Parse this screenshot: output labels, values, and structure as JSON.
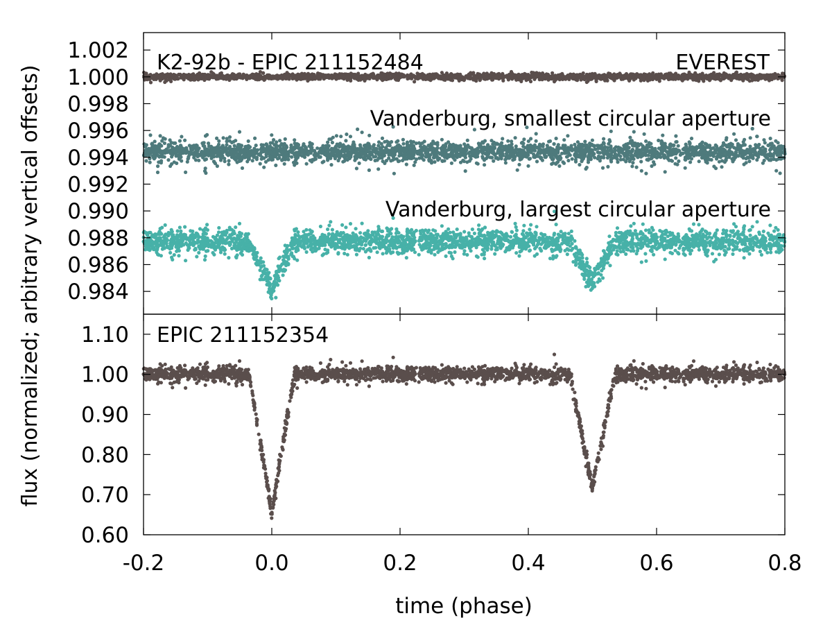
{
  "chart_data": {
    "type": "scatter",
    "xlabel": "time (phase)",
    "ylabel": "flux (normalized; arbitrary vertical offsets)",
    "xlim": [
      -0.2,
      0.8
    ],
    "xticks": [
      "-0.2",
      "0.0",
      "0.2",
      "0.4",
      "0.6",
      "0.8"
    ],
    "panels": [
      {
        "name": "top",
        "ylim": [
          0.9823,
          1.0033
        ],
        "yticks": [
          "1.002",
          "1.000",
          "0.998",
          "0.996",
          "0.994",
          "0.992",
          "0.990",
          "0.988",
          "0.986",
          "0.984"
        ],
        "ytick_values": [
          1.002,
          1.0,
          0.998,
          0.996,
          0.994,
          0.992,
          0.99,
          0.988,
          0.986,
          0.984
        ],
        "annotations": {
          "left": "K2-92b - EPIC 211152484",
          "right": "EVEREST",
          "small": "Vanderburg, smallest circular aperture",
          "large": "Vanderburg, largest circular aperture"
        },
        "series": [
          {
            "name": "EVEREST",
            "color": "#5a4e4c",
            "baseline": 1.0,
            "scatter": 0.00012,
            "outlier_rate": 0.0,
            "points": 2200,
            "dips": []
          },
          {
            "name": "Vanderburg, smallest circular aperture",
            "color": "#4e7a7c",
            "baseline": 0.9944,
            "scatter": 0.00035,
            "outlier_rate": 0.1,
            "outlier_spread": 0.0012,
            "points": 2600,
            "dips": []
          },
          {
            "name": "Vanderburg, largest circular aperture",
            "color": "#47b1a8",
            "baseline": 0.9877,
            "scatter": 0.00045,
            "outlier_rate": 0.06,
            "outlier_spread": 0.0009,
            "points": 2600,
            "dips": [
              {
                "center": 0.0,
                "depth": 0.0035,
                "half_width": 0.035
              },
              {
                "center": 0.5,
                "depth": 0.0031,
                "half_width": 0.035
              }
            ]
          }
        ]
      },
      {
        "name": "bottom",
        "ylim": [
          0.6,
          1.15
        ],
        "yticks": [
          "1.10",
          "1.00",
          "0.90",
          "0.80",
          "0.70",
          "0.60"
        ],
        "ytick_values": [
          1.1,
          1.0,
          0.9,
          0.8,
          0.7,
          0.6
        ],
        "annotations": {
          "left": "EPIC 211152354"
        },
        "series": [
          {
            "name": "EPIC 211152354",
            "color": "#5a4e4c",
            "baseline": 1.0,
            "scatter": 0.009,
            "outlier_rate": 0.06,
            "outlier_spread": 0.025,
            "points": 2400,
            "dips": [
              {
                "center": 0.0,
                "depth": 0.345,
                "half_width": 0.035
              },
              {
                "center": 0.5,
                "depth": 0.285,
                "half_width": 0.035
              }
            ]
          }
        ]
      }
    ]
  }
}
